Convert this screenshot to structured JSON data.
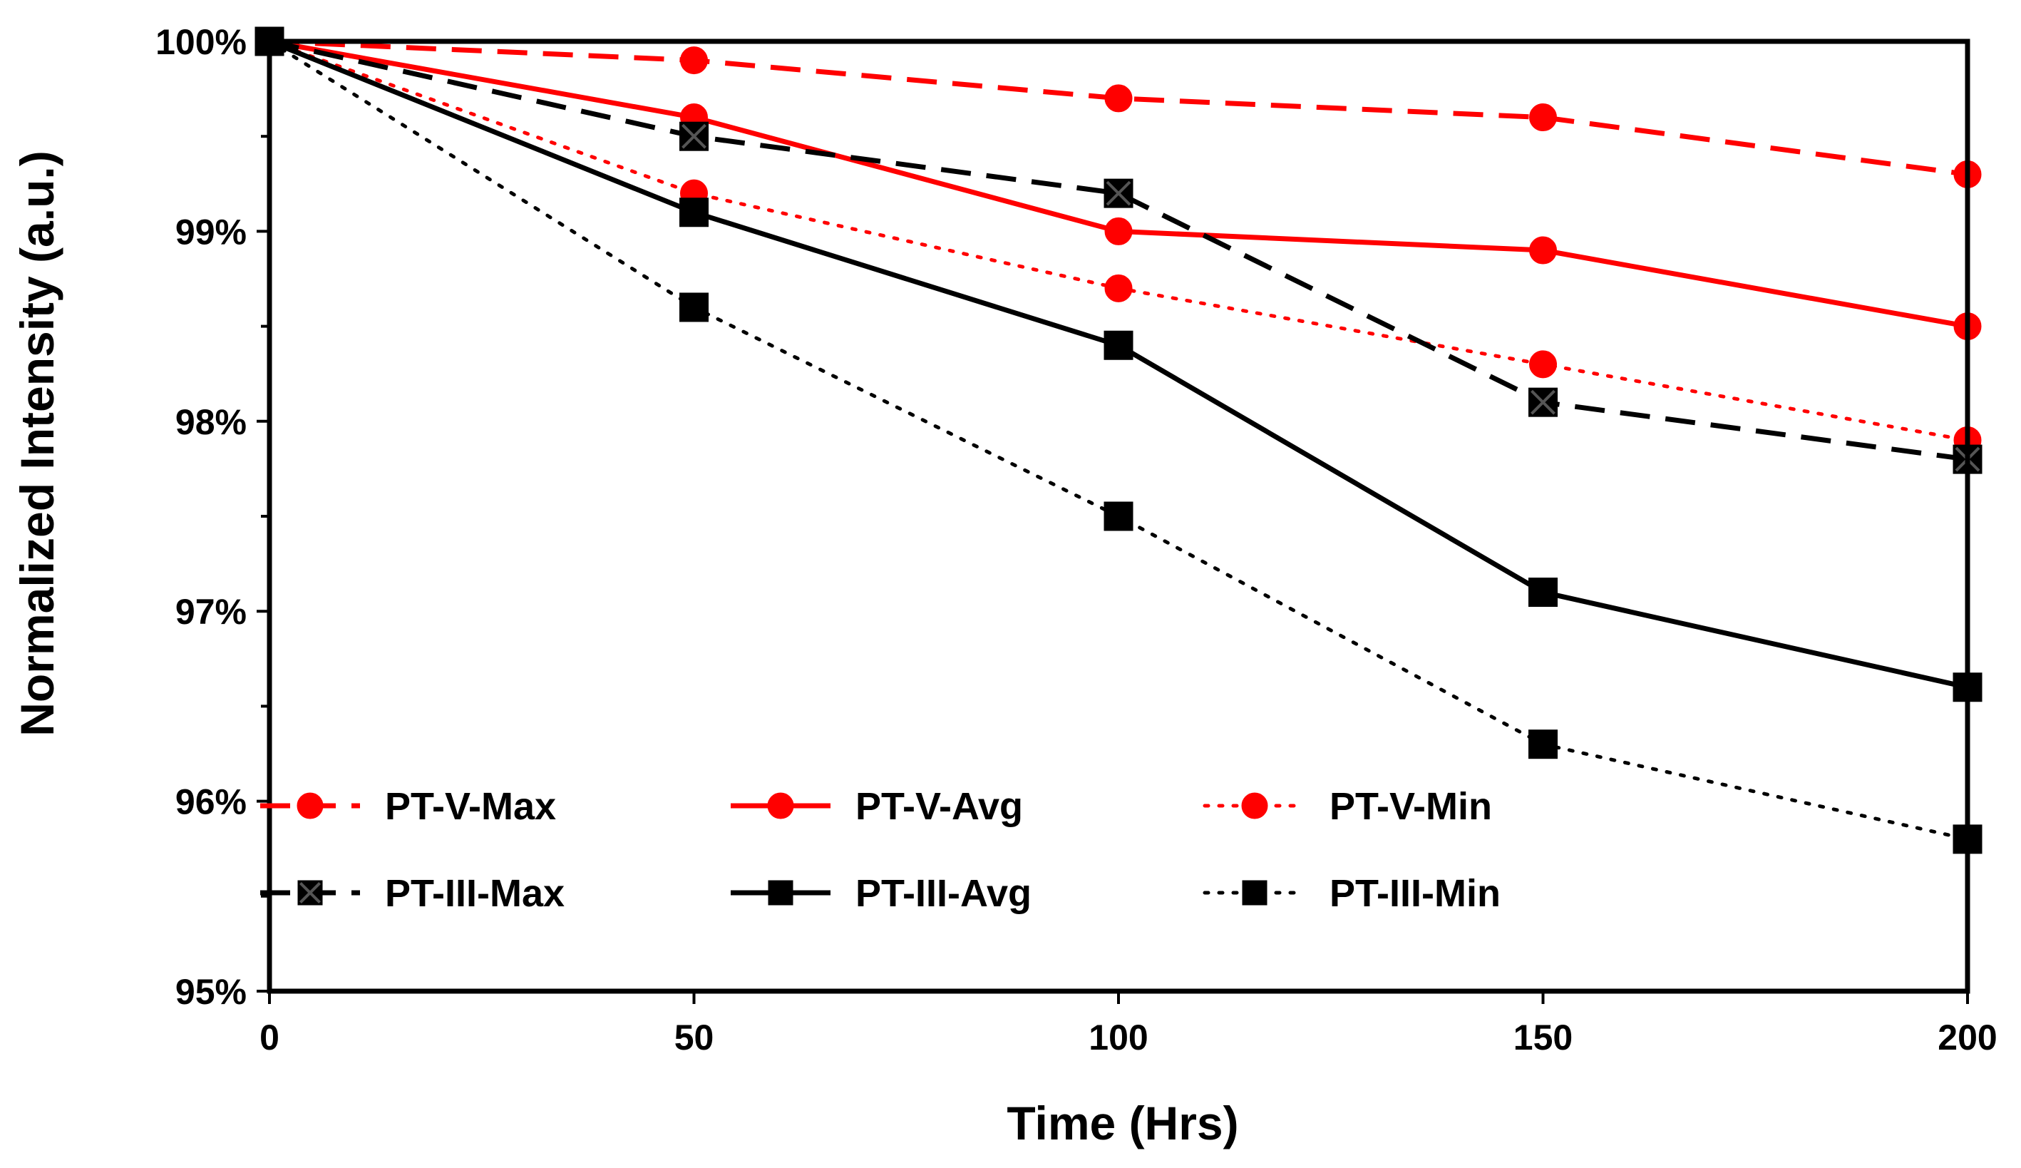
{
  "chart_data": {
    "type": "line",
    "title": "",
    "xlabel": "Time (Hrs)",
    "ylabel": "Normalized Intensity (a.u.)",
    "x": [
      0,
      50,
      100,
      150,
      200
    ],
    "xlim": [
      0,
      200
    ],
    "ylim": [
      95,
      100
    ],
    "xticks": [
      0,
      50,
      100,
      150,
      200
    ],
    "yticks": [
      95,
      96,
      97,
      98,
      99,
      100
    ],
    "xtick_labels": [
      "0",
      "50",
      "100",
      "150",
      "200"
    ],
    "ytick_labels": [
      "95%",
      "96%",
      "97%",
      "98%",
      "99%",
      "100%"
    ],
    "grid": false,
    "legend_placement": "bottom-left inside plot",
    "series": [
      {
        "name": "PT-V-Max",
        "color": "#ff0000",
        "dash": "dashed",
        "marker": "circle",
        "values": [
          100,
          99.9,
          99.7,
          99.6,
          99.3
        ]
      },
      {
        "name": "PT-V-Avg",
        "color": "#ff0000",
        "dash": "solid",
        "marker": "circle",
        "values": [
          100,
          99.6,
          99.0,
          98.9,
          98.5
        ]
      },
      {
        "name": "PT-V-Min",
        "color": "#ff0000",
        "dash": "dotted",
        "marker": "circle",
        "values": [
          100,
          99.2,
          98.7,
          98.3,
          97.9
        ]
      },
      {
        "name": "PT-III-Max",
        "color": "#000000",
        "dash": "dashed",
        "marker": "x-square",
        "values": [
          100,
          99.5,
          99.2,
          98.1,
          97.8
        ]
      },
      {
        "name": "PT-III-Avg",
        "color": "#000000",
        "dash": "solid",
        "marker": "square",
        "values": [
          100,
          99.1,
          98.4,
          97.1,
          96.6
        ]
      },
      {
        "name": "PT-III-Min",
        "color": "#000000",
        "dash": "dotted",
        "marker": "square",
        "values": [
          100,
          98.6,
          97.5,
          96.3,
          95.8
        ]
      }
    ]
  }
}
